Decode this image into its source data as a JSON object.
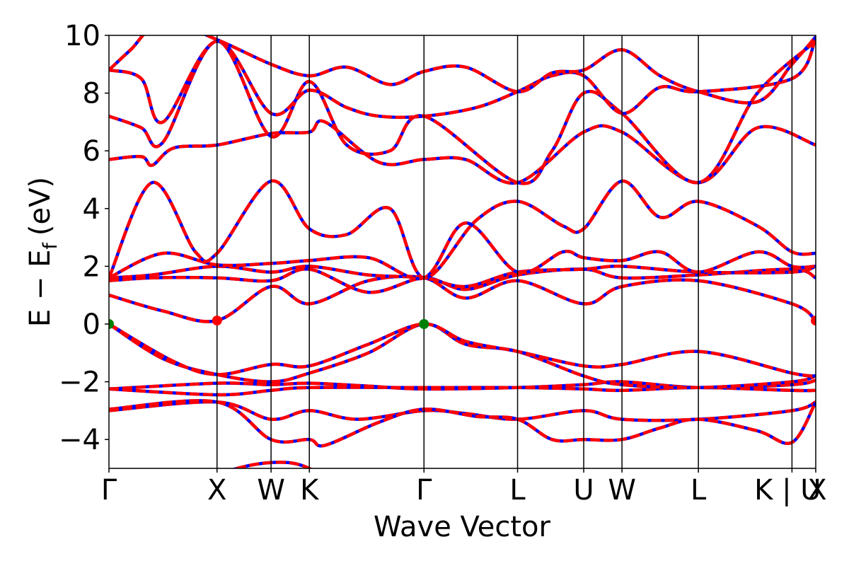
{
  "chart_data": {
    "type": "line",
    "title": "",
    "xlabel": "Wave Vector",
    "ylabel": "E − E",
    "ylabel_subscript": "f",
    "ylabel_unit": "(eV)",
    "ylim": [
      -5,
      10
    ],
    "yticks": [
      {
        "value": 10,
        "label": "10"
      },
      {
        "value": 8,
        "label": "8"
      },
      {
        "value": 6,
        "label": "6"
      },
      {
        "value": 4,
        "label": "4"
      },
      {
        "value": 2,
        "label": "2"
      },
      {
        "value": 0,
        "label": "0"
      },
      {
        "value": -2,
        "label": "−2"
      },
      {
        "value": -4,
        "label": "−4"
      }
    ],
    "xlim": [
      0,
      6.54
    ],
    "kpoints": [
      {
        "label": "Γ",
        "x": 0.0
      },
      {
        "label": "X",
        "x": 1.0
      },
      {
        "label": "W",
        "x": 1.5
      },
      {
        "label": "K",
        "x": 1.854
      },
      {
        "label": "Γ",
        "x": 2.915
      },
      {
        "label": "L",
        "x": 3.781
      },
      {
        "label": "U",
        "x": 4.393
      },
      {
        "label": "W",
        "x": 4.747
      },
      {
        "label": "L",
        "x": 5.454
      },
      {
        "label": "K | U",
        "x": 6.32
      },
      {
        "label": "X",
        "x": 6.54
      }
    ],
    "series_style": {
      "color_dash": "#ff0000",
      "color_solid": "#0000ff"
    },
    "band_extrema": [
      {
        "x": 0.0,
        "y": 0.0,
        "color": "#008000"
      },
      {
        "x": 2.915,
        "y": 0.0,
        "color": "#008000"
      },
      {
        "x": 1.0,
        "y": 0.12,
        "color": "#ff0000"
      },
      {
        "x": 6.54,
        "y": 0.12,
        "color": "#ff0000"
      }
    ],
    "bands": [
      {
        "knots": [
          [
            0,
            -6.5
          ],
          [
            1.0,
            -5.2
          ],
          [
            1.5,
            -4.8
          ],
          [
            1.854,
            -5.0
          ],
          [
            2.2,
            -6.0
          ]
        ]
      },
      {
        "knots": [
          [
            0,
            -3.0
          ],
          [
            1.0,
            -2.7
          ],
          [
            1.5,
            -3.3
          ],
          [
            1.854,
            -3.0
          ],
          [
            2.3,
            -3.3
          ],
          [
            2.915,
            -3.0
          ],
          [
            3.3,
            -3.1
          ],
          [
            3.781,
            -3.3
          ],
          [
            4.393,
            -3.0
          ],
          [
            4.747,
            -3.3
          ],
          [
            5.454,
            -3.3
          ],
          [
            6.32,
            -3.0
          ],
          [
            6.54,
            -2.7
          ]
        ]
      },
      {
        "knots": [
          [
            0,
            -2.95
          ],
          [
            1.0,
            -2.7
          ],
          [
            1.5,
            -4.0
          ],
          [
            1.854,
            -4.0
          ],
          [
            2.0,
            -4.2
          ],
          [
            2.5,
            -3.4
          ],
          [
            2.915,
            -2.95
          ],
          [
            3.4,
            -3.2
          ],
          [
            3.781,
            -3.3
          ],
          [
            4.1,
            -4.0
          ],
          [
            4.393,
            -4.0
          ],
          [
            4.747,
            -4.0
          ],
          [
            5.1,
            -3.6
          ],
          [
            5.454,
            -3.3
          ],
          [
            6.0,
            -3.7
          ],
          [
            6.32,
            -4.1
          ],
          [
            6.54,
            -2.7
          ]
        ]
      },
      {
        "knots": [
          [
            0,
            -2.25
          ],
          [
            1.0,
            -2.45
          ],
          [
            1.5,
            -2.3
          ],
          [
            1.854,
            -2.2
          ],
          [
            2.915,
            -2.2
          ],
          [
            3.781,
            -2.2
          ],
          [
            4.393,
            -2.25
          ],
          [
            4.747,
            -2.3
          ],
          [
            5.454,
            -2.2
          ],
          [
            6.32,
            -2.3
          ],
          [
            6.54,
            -2.3
          ]
        ]
      },
      {
        "knots": [
          [
            0,
            -2.25
          ],
          [
            1.0,
            -2.05
          ],
          [
            1.5,
            -2.1
          ],
          [
            1.854,
            -2.05
          ],
          [
            2.4,
            -2.15
          ],
          [
            2.915,
            -2.25
          ],
          [
            3.781,
            -2.2
          ],
          [
            4.393,
            -2.1
          ],
          [
            4.747,
            -2.0
          ],
          [
            5.454,
            -2.2
          ],
          [
            6.32,
            -2.1
          ],
          [
            6.54,
            -1.95
          ]
        ]
      },
      {
        "knots": [
          [
            0,
            0.0
          ],
          [
            0.5,
            -1.2
          ],
          [
            1.0,
            -1.75
          ],
          [
            1.5,
            -2.0
          ],
          [
            1.854,
            -1.7
          ],
          [
            2.4,
            -1.0
          ],
          [
            2.915,
            0.0
          ],
          [
            3.3,
            -0.7
          ],
          [
            3.781,
            -0.95
          ],
          [
            4.393,
            -1.8
          ],
          [
            4.747,
            -2.1
          ],
          [
            5.454,
            -2.2
          ],
          [
            6.32,
            -2.0
          ],
          [
            6.54,
            -1.8
          ]
        ]
      },
      {
        "knots": [
          [
            0,
            0.0
          ],
          [
            0.6,
            -1.3
          ],
          [
            1.0,
            -1.75
          ],
          [
            1.5,
            -1.4
          ],
          [
            1.854,
            -1.45
          ],
          [
            2.4,
            -0.7
          ],
          [
            2.915,
            0.0
          ],
          [
            3.3,
            -0.6
          ],
          [
            3.781,
            -0.95
          ],
          [
            4.393,
            -1.45
          ],
          [
            4.747,
            -1.4
          ],
          [
            5.454,
            -0.95
          ],
          [
            6.32,
            -1.7
          ],
          [
            6.54,
            -1.8
          ]
        ]
      },
      {
        "knots": [
          [
            0,
            1.0
          ],
          [
            0.5,
            0.45
          ],
          [
            1.0,
            0.12
          ],
          [
            1.5,
            1.3
          ],
          [
            1.854,
            0.7
          ],
          [
            2.4,
            1.5
          ],
          [
            2.915,
            1.6
          ],
          [
            3.3,
            0.9
          ],
          [
            3.781,
            1.5
          ],
          [
            4.393,
            0.7
          ],
          [
            4.747,
            1.3
          ],
          [
            5.454,
            1.5
          ],
          [
            6.32,
            0.7
          ],
          [
            6.54,
            0.12
          ]
        ]
      },
      {
        "knots": [
          [
            0,
            1.5
          ],
          [
            0.4,
            1.6
          ],
          [
            1.0,
            1.6
          ],
          [
            1.5,
            1.5
          ],
          [
            1.854,
            1.9
          ],
          [
            2.4,
            1.1
          ],
          [
            2.915,
            1.6
          ],
          [
            3.3,
            1.2
          ],
          [
            3.781,
            1.7
          ],
          [
            4.393,
            1.9
          ],
          [
            4.747,
            1.6
          ],
          [
            5.454,
            1.7
          ],
          [
            6.32,
            1.9
          ],
          [
            6.54,
            1.6
          ]
        ]
      },
      {
        "knots": [
          [
            0,
            1.6
          ],
          [
            0.4,
            1.7
          ],
          [
            1.0,
            2.0
          ],
          [
            1.5,
            1.8
          ],
          [
            1.854,
            2.0
          ],
          [
            2.4,
            1.7
          ],
          [
            2.915,
            1.6
          ],
          [
            3.3,
            1.3
          ],
          [
            3.781,
            1.8
          ],
          [
            4.393,
            1.9
          ],
          [
            4.747,
            2.0
          ],
          [
            5.454,
            1.8
          ],
          [
            6.32,
            1.8
          ],
          [
            6.54,
            2.0
          ]
        ]
      },
      {
        "knots": [
          [
            0,
            1.6
          ],
          [
            0.5,
            2.45
          ],
          [
            1.0,
            2.05
          ],
          [
            1.5,
            2.1
          ],
          [
            1.854,
            2.2
          ],
          [
            2.4,
            2.3
          ],
          [
            2.915,
            1.6
          ],
          [
            3.3,
            3.5
          ],
          [
            3.781,
            1.8
          ],
          [
            4.2,
            2.5
          ],
          [
            4.393,
            2.3
          ],
          [
            4.747,
            2.2
          ],
          [
            5.1,
            2.5
          ],
          [
            5.454,
            1.8
          ],
          [
            6.0,
            2.5
          ],
          [
            6.32,
            2.0
          ],
          [
            6.54,
            2.0
          ]
        ]
      },
      {
        "knots": [
          [
            0,
            1.6
          ],
          [
            0.4,
            4.9
          ],
          [
            0.8,
            2.5
          ],
          [
            1.0,
            2.45
          ],
          [
            1.5,
            4.95
          ],
          [
            1.854,
            3.3
          ],
          [
            2.2,
            3.1
          ],
          [
            2.6,
            4.0
          ],
          [
            2.915,
            1.6
          ],
          [
            3.4,
            3.6
          ],
          [
            3.781,
            4.25
          ],
          [
            4.2,
            3.4
          ],
          [
            4.393,
            3.3
          ],
          [
            4.747,
            4.95
          ],
          [
            5.1,
            3.7
          ],
          [
            5.454,
            4.25
          ],
          [
            6.0,
            3.4
          ],
          [
            6.32,
            2.5
          ],
          [
            6.54,
            2.45
          ]
        ]
      },
      {
        "knots": [
          [
            0,
            5.7
          ],
          [
            0.3,
            5.8
          ],
          [
            0.4,
            5.5
          ],
          [
            0.6,
            6.1
          ],
          [
            1.0,
            6.2
          ],
          [
            1.5,
            6.6
          ],
          [
            1.854,
            6.65
          ],
          [
            2.0,
            7.0
          ],
          [
            2.5,
            5.6
          ],
          [
            2.915,
            5.7
          ],
          [
            3.3,
            5.7
          ],
          [
            3.781,
            4.9
          ],
          [
            4.393,
            6.65
          ],
          [
            4.747,
            6.65
          ],
          [
            5.454,
            4.9
          ],
          [
            6.0,
            6.8
          ],
          [
            6.54,
            6.2
          ]
        ]
      },
      {
        "knots": [
          [
            0,
            7.2
          ],
          [
            0.3,
            6.8
          ],
          [
            0.5,
            6.3
          ],
          [
            1.0,
            9.8
          ],
          [
            1.5,
            6.5
          ],
          [
            1.854,
            8.4
          ],
          [
            2.2,
            6.2
          ],
          [
            2.6,
            6.0
          ],
          [
            2.915,
            7.2
          ],
          [
            3.781,
            4.9
          ],
          [
            4.1,
            6.0
          ],
          [
            4.393,
            8.0
          ],
          [
            4.747,
            7.3
          ],
          [
            5.454,
            4.9
          ],
          [
            6.0,
            8.0
          ],
          [
            6.54,
            9.8
          ]
        ]
      },
      {
        "knots": [
          [
            0,
            8.8
          ],
          [
            0.3,
            8.5
          ],
          [
            0.5,
            7.0
          ],
          [
            1.0,
            9.8
          ],
          [
            1.5,
            7.3
          ],
          [
            1.854,
            8.1
          ],
          [
            2.2,
            7.5
          ],
          [
            2.5,
            7.2
          ],
          [
            2.915,
            7.2
          ],
          [
            3.4,
            7.5
          ],
          [
            3.781,
            8.05
          ],
          [
            4.1,
            8.6
          ],
          [
            4.393,
            8.6
          ],
          [
            4.747,
            7.3
          ],
          [
            5.1,
            8.2
          ],
          [
            5.454,
            8.05
          ],
          [
            6.32,
            8.5
          ],
          [
            6.54,
            9.9
          ]
        ]
      },
      {
        "knots": [
          [
            0,
            8.8
          ],
          [
            0.2,
            9.5
          ],
          [
            0.5,
            10.5
          ],
          [
            1.0,
            9.85
          ],
          [
            1.5,
            9.0
          ],
          [
            1.854,
            8.6
          ],
          [
            2.2,
            8.9
          ],
          [
            2.6,
            8.3
          ],
          [
            2.915,
            8.75
          ],
          [
            3.3,
            8.9
          ],
          [
            3.781,
            8.05
          ],
          [
            4.1,
            8.7
          ],
          [
            4.393,
            8.8
          ],
          [
            4.747,
            9.5
          ],
          [
            5.1,
            8.6
          ],
          [
            5.454,
            8.05
          ],
          [
            6.0,
            7.7
          ],
          [
            6.32,
            9.0
          ],
          [
            6.54,
            9.95
          ]
        ]
      }
    ]
  }
}
